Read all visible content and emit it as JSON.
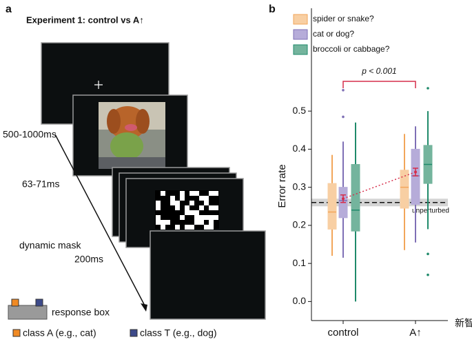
{
  "panel_a": {
    "letter": "a",
    "title": "Experiment 1: control vs A↑",
    "timing_fixation": "500-1000ms",
    "timing_image": "63-71ms",
    "mask_label": "dynamic mask",
    "mask_timing": "200ms",
    "response_label": "response box",
    "class_a": "class A (e.g., cat)",
    "class_t": "class T (e.g., dog)"
  },
  "chart_data": {
    "type": "box",
    "letter": "b",
    "ylabel": "Error rate",
    "categories": [
      "control",
      "A↑"
    ],
    "ylim": [
      -0.05,
      0.77
    ],
    "yticks": [
      {
        "value": 0,
        "label": "0.0"
      },
      {
        "value": 0.1,
        "label": "0.1"
      },
      {
        "value": 0.2,
        "label": "0.2"
      },
      {
        "value": 0.3,
        "label": "0.3"
      },
      {
        "value": 0.4,
        "label": "0.4"
      },
      {
        "value": 0.5,
        "label": "0.5"
      }
    ],
    "series": [
      {
        "name": "spider or snake?",
        "color": "#f2a65a",
        "fill": "#f8cfa3",
        "boxes": [
          {
            "whislo": 0.12,
            "q1": 0.19,
            "med": 0.235,
            "q3": 0.31,
            "whishi": 0.385,
            "fliers": []
          },
          {
            "whislo": 0.135,
            "q1": 0.245,
            "med": 0.3,
            "q3": 0.345,
            "whishi": 0.44,
            "fliers": []
          }
        ]
      },
      {
        "name": "cat or dog?",
        "color": "#7e6fb5",
        "fill": "#b6acd9",
        "boxes": [
          {
            "whislo": 0.115,
            "q1": 0.22,
            "med": 0.265,
            "q3": 0.3,
            "whishi": 0.42,
            "fliers": [
              0.485,
              0.555
            ]
          },
          {
            "whislo": 0.155,
            "q1": 0.255,
            "med": 0.33,
            "q3": 0.4,
            "whishi": 0.46,
            "fliers": []
          }
        ]
      },
      {
        "name": "broccoli or cabbage?",
        "color": "#1f8a6a",
        "fill": "#74b49d",
        "boxes": [
          {
            "whislo": 0.0,
            "q1": 0.185,
            "med": 0.24,
            "q3": 0.36,
            "whishi": 0.47,
            "fliers": []
          },
          {
            "whislo": 0.19,
            "q1": 0.31,
            "med": 0.36,
            "q3": 0.41,
            "whishi": 0.5,
            "fliers": [
              0.07,
              0.125,
              0.56
            ]
          }
        ]
      }
    ],
    "means": {
      "color": "#d62d4a",
      "values": [
        0.27,
        0.34
      ],
      "errors": [
        0.01,
        0.01
      ]
    },
    "reference": {
      "label": "unperturbed",
      "value": 0.26,
      "band": [
        0.25,
        0.27
      ]
    },
    "annotation": {
      "text": "p < 0.001",
      "color": "#d62d4a"
    },
    "watermark": "新智元"
  }
}
